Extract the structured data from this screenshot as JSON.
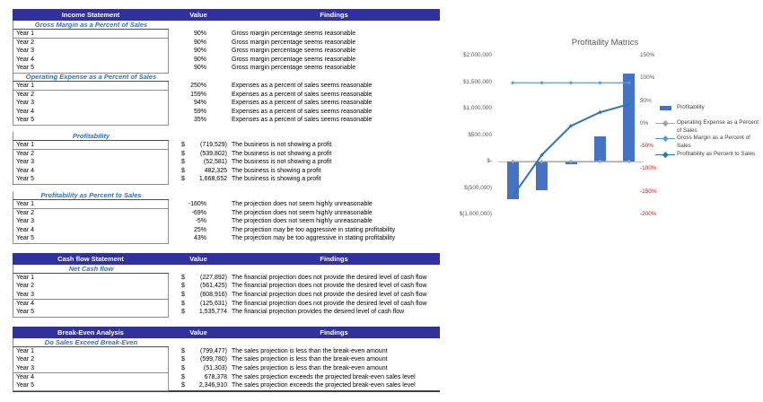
{
  "table": {
    "currency_symbol": "$",
    "sections": [
      {
        "header": {
          "name": "Income Statement",
          "value_label": "Value",
          "findings_label": "Findings"
        },
        "groups": [
          {
            "title": "Gross Margin as a Percent of Sales",
            "gap_before": false,
            "rows": [
              {
                "label": "Year 1",
                "value": "90%",
                "currency": false,
                "finding": "Gross margin percentage seems reasonable"
              },
              {
                "label": "Year 2",
                "value": "90%",
                "currency": false,
                "finding": "Gross margin percentage seems reasonable"
              },
              {
                "label": "Year 3",
                "value": "90%",
                "currency": false,
                "finding": "Gross margin percentage seems reasonable"
              },
              {
                "label": "Year 4",
                "value": "90%",
                "currency": false,
                "finding": "Gross margin percentage seems reasonable"
              },
              {
                "label": "Year 5",
                "value": "90%",
                "currency": false,
                "finding": "Gross margin percentage seems reasonable"
              }
            ]
          },
          {
            "title": "Operating Expense as a Percent of Sales",
            "gap_before": false,
            "rows": [
              {
                "label": "Year 1",
                "value": "250%",
                "currency": false,
                "finding": "Expenses as a percent of sales seems reasonable"
              },
              {
                "label": "Year 2",
                "value": "159%",
                "currency": false,
                "finding": "Expenses as a percent of sales seems reasonable"
              },
              {
                "label": "Year 3",
                "value": "94%",
                "currency": false,
                "finding": "Expenses as a percent of sales seems reasonable"
              },
              {
                "label": "Year 4",
                "value": "59%",
                "currency": false,
                "finding": "Expenses as a percent of sales seems reasonable"
              },
              {
                "label": "Year 5",
                "value": "35%",
                "currency": false,
                "finding": "Expenses as a percent of sales seems reasonable"
              }
            ]
          },
          {
            "title": "Profitability",
            "gap_before": true,
            "rows": [
              {
                "label": "Year 1",
                "value": "(719,529)",
                "currency": true,
                "finding": "The business is not showing a profit"
              },
              {
                "label": "Year 2",
                "value": "(539,802)",
                "currency": true,
                "finding": "The business is not showing a profit"
              },
              {
                "label": "Year 3",
                "value": "(52,581)",
                "currency": true,
                "finding": "The business is not showing a profit"
              },
              {
                "label": "Year 4",
                "value": "482,325",
                "currency": true,
                "finding": "The business is showing a profit"
              },
              {
                "label": "Year 5",
                "value": "1,668,652",
                "currency": true,
                "finding": "The business is showing a profit"
              }
            ]
          },
          {
            "title": "Profitability as Percent to Sales",
            "gap_before": true,
            "rows": [
              {
                "label": "Year 1",
                "value": "-160%",
                "currency": false,
                "finding": "The projection does not seem highly unreasonable"
              },
              {
                "label": "Year 2",
                "value": "-69%",
                "currency": false,
                "finding": "The projection does not seem highly unreasonable"
              },
              {
                "label": "Year 3",
                "value": "-5%",
                "currency": false,
                "finding": "The projection does not seem highly unreasonable"
              },
              {
                "label": "Year 4",
                "value": "25%",
                "currency": false,
                "finding": "The projection may be too aggressive in stating profitability"
              },
              {
                "label": "Year 5",
                "value": "43%",
                "currency": false,
                "finding": "The projection may be too aggressive in stating profitability"
              }
            ]
          }
        ]
      },
      {
        "header": {
          "name": "Cash flow Statement",
          "value_label": "Value",
          "findings_label": "Findings"
        },
        "groups": [
          {
            "title": "Net Cash flow",
            "gap_before": false,
            "rows": [
              {
                "label": "Year 1",
                "value": "(227,892)",
                "currency": true,
                "finding": "The financial projection does not provide the desired level of cash flow"
              },
              {
                "label": "Year 2",
                "value": "(561,425)",
                "currency": true,
                "finding": "The financial projection does not provide the desired level of cash flow"
              },
              {
                "label": "Year 3",
                "value": "(608,916)",
                "currency": true,
                "finding": "The financial projection does not provide the desired level of cash flow"
              },
              {
                "label": "Year 4",
                "value": "(125,631)",
                "currency": true,
                "finding": "The financial projection does not provide the desired level of cash flow"
              },
              {
                "label": "Year 5",
                "value": "1,535,774",
                "currency": true,
                "finding": "The financial projection provides the desired level of cash flow"
              }
            ]
          }
        ]
      },
      {
        "header": {
          "name": "Break-Even Analysis",
          "value_label": "Value",
          "findings_label": "Findings"
        },
        "groups": [
          {
            "title": "Do Sales Exceed Break-Even",
            "gap_before": false,
            "rows": [
              {
                "label": "Year 1",
                "value": "(799,477)",
                "currency": true,
                "finding": "The sales projection is less than the break-even amount"
              },
              {
                "label": "Year 2",
                "value": "(599,780)",
                "currency": true,
                "finding": "The sales projection is less than the break-even amount"
              },
              {
                "label": "Year 3",
                "value": "(51,303)",
                "currency": true,
                "finding": "The sales projection is less than the break-even amount"
              },
              {
                "label": "Year 4",
                "value": "678,378",
                "currency": true,
                "finding": "The sales projection exceeds the projected break-even sales level"
              },
              {
                "label": "Year 5",
                "value": "2,346,910",
                "currency": true,
                "finding": "The sales projection exceeds the projected break-even sales level"
              }
            ]
          }
        ]
      }
    ]
  },
  "chart_data": {
    "type": "combo",
    "title": "Profitaility Matrics",
    "categories": [
      "Year 1",
      "Year 2",
      "Year 3",
      "Year 4",
      "Year 5"
    ],
    "series": [
      {
        "name": "Profitability",
        "type": "bar",
        "axis": "primary",
        "color": "#4472C4",
        "values": [
          -719529,
          -539802,
          -52581,
          482325,
          1668652
        ]
      },
      {
        "name": "Operating Expense as a Percent of Sales",
        "type": "line",
        "axis": "primary",
        "color": "#A5A5A5",
        "values": [
          2.5,
          1.59,
          0.94,
          0.59,
          0.35
        ],
        "percent_values": [
          250,
          159,
          94,
          59,
          35
        ],
        "note": "percent ratios plotted against the dollar axis, so the line sits flat at ~$0"
      },
      {
        "name": "Gross Margin as a Percent of Sales",
        "type": "line",
        "axis": "secondary",
        "color": "#5B9BD5",
        "percent_values": [
          90,
          90,
          90,
          90,
          90
        ]
      },
      {
        "name": "Profitability as Percent to Sales",
        "type": "line",
        "axis": "secondary",
        "color": "#2E75B6",
        "percent_values": [
          -160,
          -69,
          -5,
          25,
          43
        ]
      }
    ],
    "primary_axis": {
      "ticks": [
        "$2,000,000",
        "$1,500,000",
        "$1,000,000",
        "$500,000",
        "$-",
        "$(500,000)",
        "$(1,000,000)"
      ],
      "max": 2000000,
      "min": -1000000
    },
    "secondary_axis": {
      "ticks": [
        "150%",
        "100%",
        "50%",
        "0%",
        "-50%",
        "-100%",
        "-150%",
        "-200%"
      ],
      "max": 150,
      "min": -200,
      "red_from_index": 4
    },
    "legend_position": "right",
    "gridlines": false,
    "x_axis_labels_visible": false
  },
  "colors": {
    "header_bar": "#31319C",
    "header_text": "#FFFFFF",
    "section_title": "#2E74B5",
    "cell_border": "#8C8C8C",
    "axis_text": "#595959",
    "negative_axis_text": "#FF0000",
    "zero_axis_line": "#BFBFBF",
    "table_bottom_rule": "#3F3F3F"
  }
}
